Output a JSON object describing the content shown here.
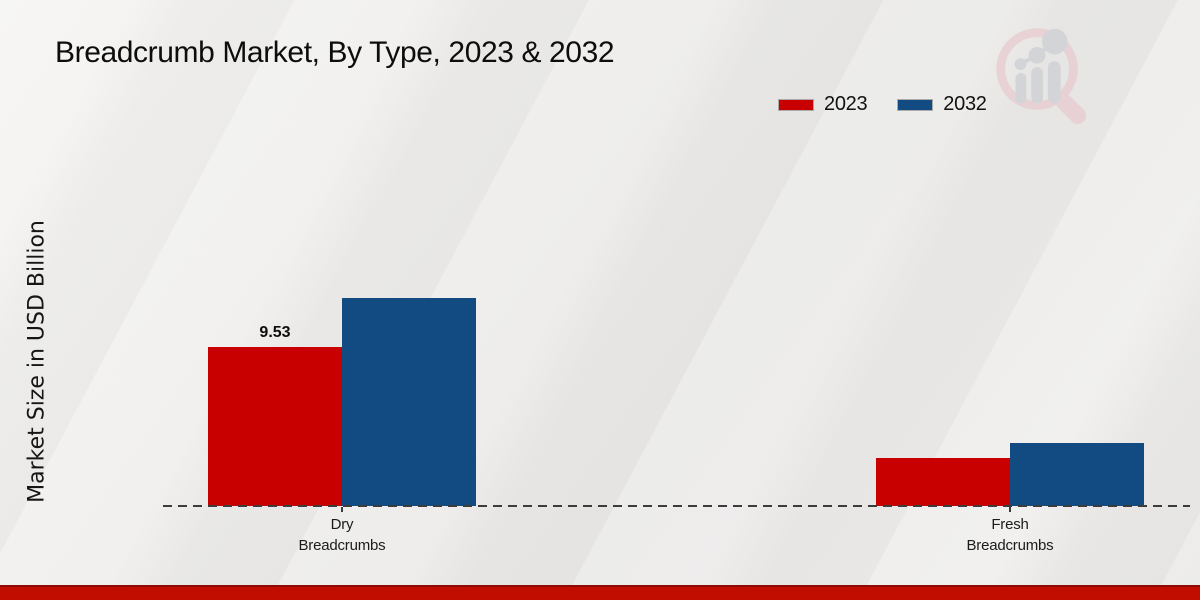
{
  "header": {
    "title": "Breadcrumb Market, By Type, 2023 & 2032"
  },
  "chart_data": {
    "type": "bar",
    "title": "Breadcrumb Market, By Type, 2023 & 2032",
    "xlabel": "",
    "ylabel": "Market Size in USD Billion",
    "units": "USD Billion",
    "categories": [
      "Dry Breadcrumbs",
      "Fresh Breadcrumbs"
    ],
    "series": [
      {
        "name": "2023",
        "color": "#c80000",
        "values": [
          9.53,
          2.9
        ],
        "data_labels": [
          "9.53",
          ""
        ]
      },
      {
        "name": "2032",
        "color": "#114b82",
        "values": [
          12.5,
          3.8
        ],
        "data_labels": [
          "",
          ""
        ]
      }
    ],
    "ylim": [
      0,
      14
    ],
    "grid": false,
    "y_axis_ticks_visible": false,
    "legend_position": "top-right",
    "baseline_style": "dashed"
  },
  "branding": {
    "logo_name": "magnifier-bar-chart-logo",
    "logo_ring_color": "#e8cdd1",
    "logo_bars_color": "#cfd0d4",
    "bottom_stripe_color": "#c00d00",
    "bottom_stripe_edge_color": "#8f0a00"
  }
}
